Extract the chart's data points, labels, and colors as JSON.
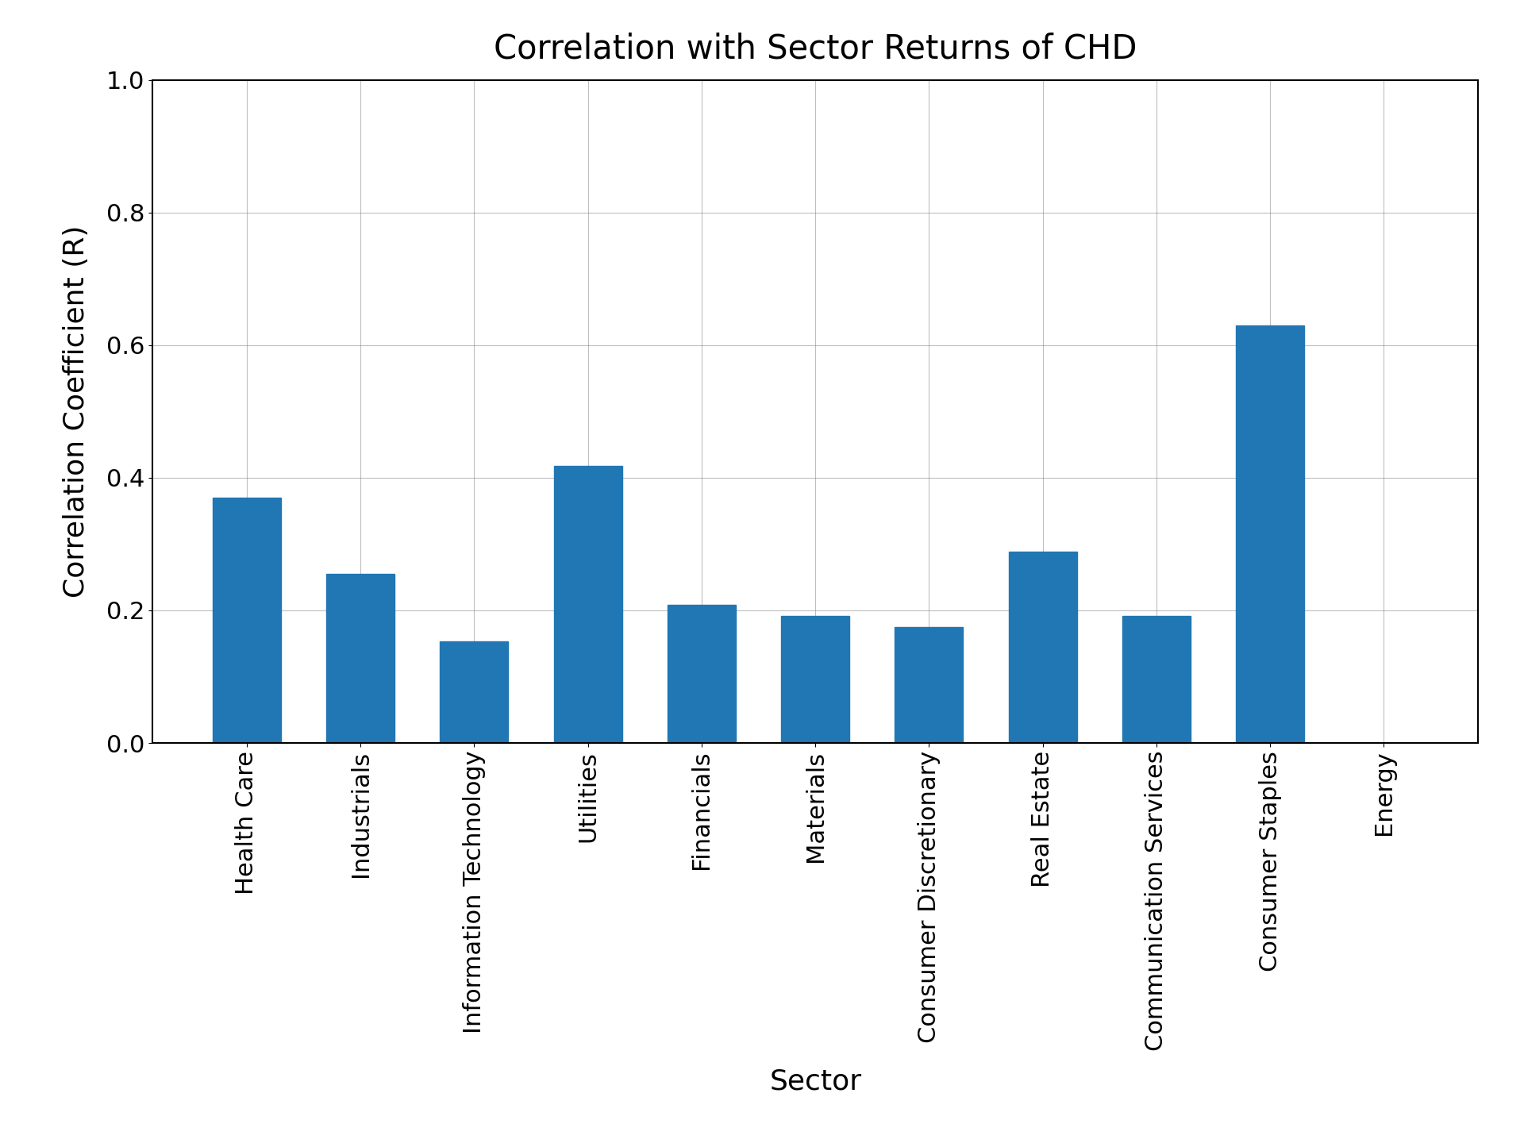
{
  "title": "Correlation with Sector Returns of CHD",
  "xlabel": "Sector",
  "ylabel": "Correlation Coefficient (R)",
  "categories": [
    "Health Care",
    "Industrials",
    "Information Technology",
    "Utilities",
    "Financials",
    "Materials",
    "Consumer Discretionary",
    "Real Estate",
    "Communication Services",
    "Consumer Staples",
    "Energy"
  ],
  "values": [
    0.37,
    0.255,
    0.153,
    0.418,
    0.208,
    0.192,
    0.175,
    0.288,
    0.192,
    0.63,
    0.0
  ],
  "bar_color": "#2077b4",
  "ylim": [
    0.0,
    1.0
  ],
  "yticks": [
    0.0,
    0.2,
    0.4,
    0.6,
    0.8,
    1.0
  ],
  "title_fontsize": 30,
  "label_fontsize": 26,
  "tick_fontsize": 22,
  "bar_width": 0.6
}
